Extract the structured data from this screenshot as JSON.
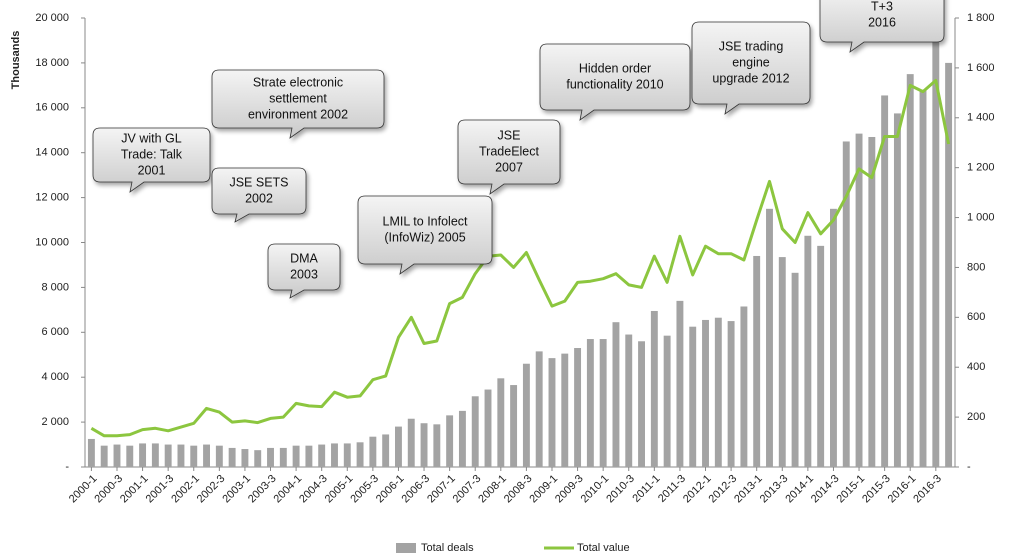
{
  "chart_data": {
    "type": "bar_line",
    "y_axis_label": "Thousands",
    "categories": [
      "2000-1",
      null,
      "2000-3",
      null,
      "2001-1",
      null,
      "2001-3",
      null,
      "2002-1",
      null,
      "2002-3",
      null,
      "2003-1",
      null,
      "2003-3",
      null,
      "2004-1",
      null,
      "2004-3",
      null,
      "2005-1",
      null,
      "2005-3",
      null,
      "2006-1",
      null,
      "2006-3",
      null,
      "2007-1",
      null,
      "2007-3",
      null,
      "2008-1",
      null,
      "2008-3",
      null,
      "2009-1",
      null,
      "2009-3",
      null,
      "2010-1",
      null,
      "2010-3",
      null,
      "2011-1",
      null,
      "2011-3",
      null,
      "2012-1",
      null,
      "2012-3",
      null,
      "2013-1",
      null,
      "2013-3",
      null,
      "2014-1",
      null,
      "2014-3",
      null,
      "2015-1",
      null,
      "2015-3",
      null,
      "2016-1",
      null,
      "2016-3",
      null
    ],
    "series": [
      {
        "name": "Total deals",
        "color": "#a3a3a3",
        "type": "bar",
        "values": [
          1250,
          950,
          1000,
          950,
          1050,
          1050,
          1000,
          1000,
          950,
          1000,
          950,
          850,
          800,
          750,
          850,
          850,
          950,
          950,
          1000,
          1050,
          1050,
          1100,
          1350,
          1450,
          1800,
          2150,
          1950,
          1900,
          2300,
          2500,
          3150,
          3450,
          3950,
          3650,
          4600,
          5150,
          4850,
          5050,
          5300,
          5700,
          5700,
          6450,
          5900,
          5600,
          6950,
          5850,
          7400,
          6250,
          6550,
          6650,
          6500,
          7150,
          9400,
          11500,
          9350,
          8650,
          10300,
          9850,
          11500,
          14500,
          14850,
          14700,
          16550,
          15750,
          17500,
          16800,
          18950,
          18000
        ]
      },
      {
        "name": "Total value",
        "color": "#8cc63f",
        "type": "line",
        "axis": "y2",
        "values": [
          155,
          125,
          125,
          130,
          150,
          155,
          145,
          160,
          175,
          235,
          220,
          180,
          185,
          178,
          195,
          200,
          255,
          245,
          242,
          300,
          280,
          285,
          350,
          365,
          520,
          600,
          495,
          505,
          655,
          680,
          775,
          845,
          850,
          800,
          860,
          750,
          645,
          665,
          740,
          745,
          755,
          775,
          730,
          720,
          845,
          740,
          925,
          770,
          885,
          855,
          855,
          830,
          990,
          1145,
          955,
          900,
          1020,
          935,
          990,
          1085,
          1195,
          1160,
          1325,
          1325,
          1530,
          1505,
          1550,
          1295
        ]
      }
    ],
    "ylim": [
      0,
      20000
    ],
    "yticks": [
      {
        "value": 0,
        "label": "-"
      },
      {
        "value": 2000,
        "label": "2 000"
      },
      {
        "value": 4000,
        "label": "4 000"
      },
      {
        "value": 6000,
        "label": "6 000"
      },
      {
        "value": 8000,
        "label": "8 000"
      },
      {
        "value": 10000,
        "label": "10 000"
      },
      {
        "value": 12000,
        "label": "12 000"
      },
      {
        "value": 14000,
        "label": "14 000"
      },
      {
        "value": 16000,
        "label": "16 000"
      },
      {
        "value": 18000,
        "label": "18 000"
      },
      {
        "value": 20000,
        "label": "20 000"
      }
    ],
    "y2lim": [
      0,
      1800
    ],
    "y2ticks": [
      {
        "value": 0,
        "label": "-"
      },
      200,
      400,
      600,
      800,
      {
        "value": 1000,
        "label": "1 000"
      },
      {
        "value": 1200,
        "label": "1 200"
      },
      {
        "value": 1400,
        "label": "1 400"
      },
      {
        "value": 1600,
        "label": "1 600"
      },
      {
        "value": 1800,
        "label": "1 800"
      }
    ],
    "legend": "bottom",
    "annotations": [
      {
        "lines": [
          "JV with GL",
          "Trade: Talk",
          "2001"
        ]
      },
      {
        "lines": [
          "Strate electronic",
          "settlement",
          "environment 2002"
        ]
      },
      {
        "lines": [
          "JSE SETS",
          "2002"
        ]
      },
      {
        "lines": [
          "DMA",
          "2003"
        ]
      },
      {
        "lines": [
          "LMIL to Infolect",
          "(InfoWiz) 2005"
        ]
      },
      {
        "lines": [
          "JSE",
          "TradeElect",
          "2007"
        ]
      },
      {
        "lines": [
          "Hidden order",
          "functionality 2010"
        ]
      },
      {
        "lines": [
          "JSE trading",
          "engine",
          "upgrade 2012"
        ]
      },
      {
        "lines": [
          "T+3",
          "2016"
        ]
      }
    ]
  }
}
